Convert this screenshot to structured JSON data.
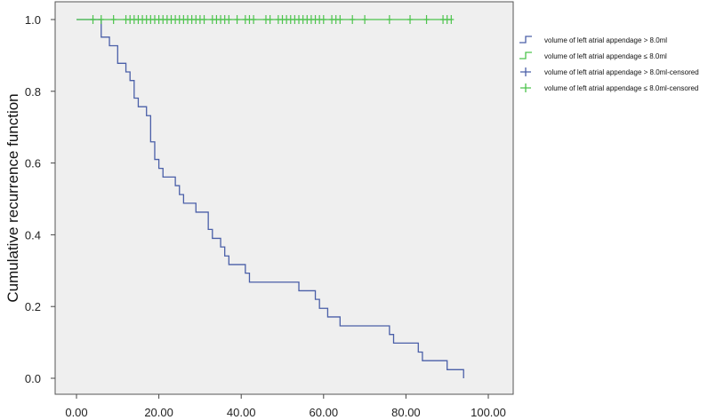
{
  "chart_data": {
    "type": "line",
    "title": "",
    "xlabel": "",
    "ylabel": "Cumulative recurrence function",
    "xlim": [
      0,
      100
    ],
    "ylim": [
      0,
      1
    ],
    "x_ticks": [
      "0.00",
      "20.00",
      "40.00",
      "60.00",
      "80.00",
      "100.00"
    ],
    "y_ticks": [
      "0.0",
      "0.2",
      "0.4",
      "0.6",
      "0.8",
      "1.0"
    ],
    "legend_position": "right",
    "colors": {
      "blue": "#4a5fa8",
      "green": "#4cc34c",
      "plot_bg": "#efefef"
    },
    "series": [
      {
        "name": "volume of left atrial appendage > 8.0ml",
        "step": true,
        "color": "#4a5fa8",
        "points": [
          [
            0,
            1.0
          ],
          [
            6,
            0.951
          ],
          [
            8,
            0.927
          ],
          [
            10,
            0.878
          ],
          [
            12,
            0.854
          ],
          [
            13,
            0.83
          ],
          [
            14,
            0.781
          ],
          [
            15,
            0.757
          ],
          [
            17,
            0.732
          ],
          [
            18,
            0.659
          ],
          [
            19,
            0.61
          ],
          [
            20,
            0.585
          ],
          [
            21,
            0.561
          ],
          [
            24,
            0.537
          ],
          [
            25,
            0.512
          ],
          [
            26,
            0.488
          ],
          [
            29,
            0.463
          ],
          [
            32,
            0.415
          ],
          [
            33,
            0.39
          ],
          [
            35,
            0.366
          ],
          [
            36,
            0.341
          ],
          [
            37,
            0.317
          ],
          [
            41,
            0.293
          ],
          [
            42,
            0.268
          ],
          [
            54,
            0.244
          ],
          [
            58,
            0.22
          ],
          [
            59,
            0.195
          ],
          [
            61,
            0.171
          ],
          [
            64,
            0.146
          ],
          [
            76,
            0.122
          ],
          [
            77,
            0.098
          ],
          [
            83,
            0.073
          ],
          [
            84,
            0.049
          ],
          [
            90,
            0.024
          ],
          [
            94,
            0.0
          ]
        ]
      },
      {
        "name": "volume of left atrial appendage ≤ 8.0ml",
        "step": true,
        "color": "#4cc34c",
        "points": [
          [
            0,
            1.0
          ],
          [
            91,
            1.0
          ]
        ]
      },
      {
        "name": "volume of left atrial appendage > 8.0ml-censored",
        "marker": "plus",
        "color": "#4a5fa8",
        "points": []
      },
      {
        "name": "volume of left atrial appendage ≤ 8.0ml-censored",
        "marker": "plus",
        "color": "#4cc34c",
        "points": [
          [
            4,
            1
          ],
          [
            6,
            1
          ],
          [
            9,
            1
          ],
          [
            12,
            1
          ],
          [
            13,
            1
          ],
          [
            14,
            1
          ],
          [
            15,
            1
          ],
          [
            16,
            1
          ],
          [
            17,
            1
          ],
          [
            18,
            1
          ],
          [
            19,
            1
          ],
          [
            20,
            1
          ],
          [
            21,
            1
          ],
          [
            22,
            1
          ],
          [
            23,
            1
          ],
          [
            24,
            1
          ],
          [
            25,
            1
          ],
          [
            26,
            1
          ],
          [
            27,
            1
          ],
          [
            28,
            1
          ],
          [
            29,
            1
          ],
          [
            30,
            1
          ],
          [
            31,
            1
          ],
          [
            33,
            1
          ],
          [
            34,
            1
          ],
          [
            35,
            1
          ],
          [
            36,
            1
          ],
          [
            37,
            1
          ],
          [
            39,
            1
          ],
          [
            41,
            1
          ],
          [
            42,
            1
          ],
          [
            43,
            1
          ],
          [
            46,
            1
          ],
          [
            47,
            1
          ],
          [
            49,
            1
          ],
          [
            50,
            1
          ],
          [
            51,
            1
          ],
          [
            52,
            1
          ],
          [
            53,
            1
          ],
          [
            54,
            1
          ],
          [
            55,
            1
          ],
          [
            56,
            1
          ],
          [
            57,
            1
          ],
          [
            58,
            1
          ],
          [
            59,
            1
          ],
          [
            60,
            1
          ],
          [
            62,
            1
          ],
          [
            63,
            1
          ],
          [
            64,
            1
          ],
          [
            67,
            1
          ],
          [
            70,
            1
          ],
          [
            76,
            1
          ],
          [
            81,
            1
          ],
          [
            85,
            1
          ],
          [
            89,
            1
          ],
          [
            90,
            1
          ],
          [
            91,
            1
          ]
        ]
      }
    ]
  }
}
